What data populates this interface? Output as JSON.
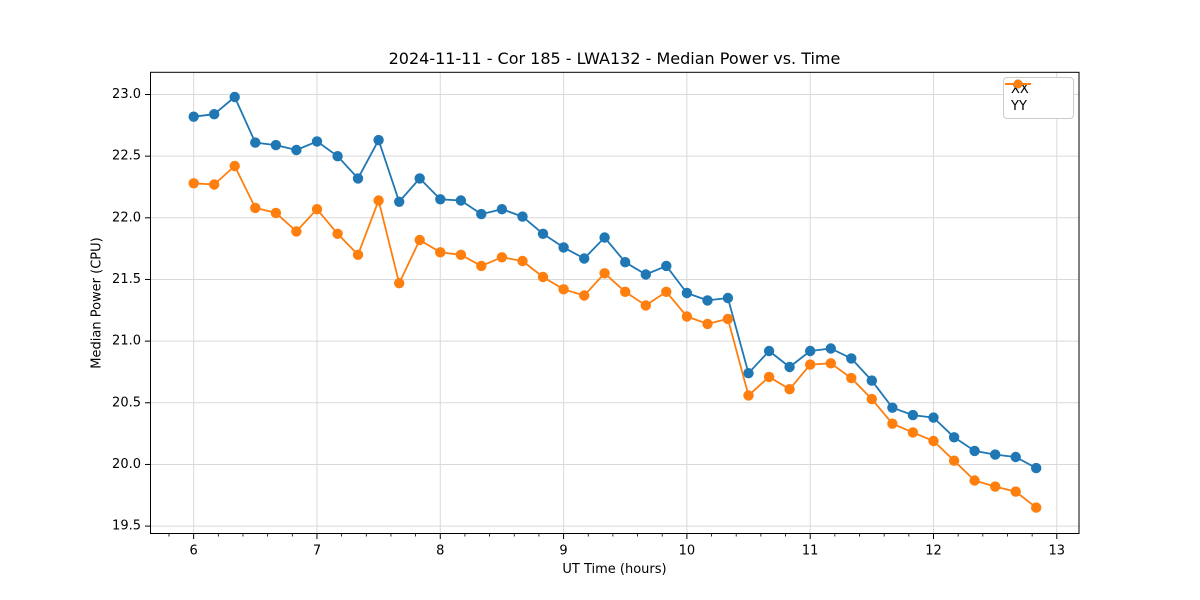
{
  "chart_data": {
    "type": "line",
    "title": "2024-11-11 - Cor 185 - LWA132 - Median Power vs. Time",
    "xlabel": "UT Time (hours)",
    "ylabel": "Median Power (CPU)",
    "xlim": [
      5.65,
      13.18
    ],
    "ylim": [
      19.44,
      23.18
    ],
    "x_ticks": [
      6,
      7,
      8,
      9,
      10,
      11,
      12,
      13
    ],
    "x_minor_tick_step": 0.2,
    "y_ticks": [
      19.5,
      20.0,
      20.5,
      21.0,
      21.5,
      22.0,
      22.5,
      23.0
    ],
    "grid": true,
    "grid_color": "#d9d9d9",
    "spine_color": "#000000",
    "legend_position": "upper right",
    "x": [
      6.0,
      6.167,
      6.333,
      6.5,
      6.667,
      6.833,
      7.0,
      7.167,
      7.333,
      7.5,
      7.667,
      7.833,
      8.0,
      8.167,
      8.333,
      8.5,
      8.667,
      8.833,
      9.0,
      9.167,
      9.333,
      9.5,
      9.667,
      9.833,
      10.0,
      10.167,
      10.333,
      10.5,
      10.667,
      10.833,
      11.0,
      11.167,
      11.333,
      11.5,
      11.667,
      11.833,
      12.0,
      12.167,
      12.333,
      12.5,
      12.667,
      12.833
    ],
    "series": [
      {
        "name": "XX",
        "color": "#1f77b4",
        "marker": "circle",
        "values": [
          22.82,
          22.84,
          22.98,
          22.61,
          22.59,
          22.55,
          22.62,
          22.5,
          22.32,
          22.63,
          22.13,
          22.32,
          22.15,
          22.14,
          22.03,
          22.07,
          22.01,
          21.87,
          21.76,
          21.67,
          21.84,
          21.64,
          21.54,
          21.61,
          21.39,
          21.33,
          21.35,
          20.74,
          20.92,
          20.79,
          20.92,
          20.94,
          20.86,
          20.68,
          20.46,
          20.4,
          20.38,
          20.22,
          20.11,
          20.08,
          20.06,
          19.97
        ]
      },
      {
        "name": "YY",
        "color": "#ff7f0e",
        "marker": "circle",
        "values": [
          22.28,
          22.27,
          22.42,
          22.08,
          22.04,
          21.89,
          22.07,
          21.87,
          21.7,
          22.14,
          21.47,
          21.82,
          21.72,
          21.7,
          21.61,
          21.68,
          21.65,
          21.52,
          21.42,
          21.37,
          21.55,
          21.4,
          21.29,
          21.4,
          21.2,
          21.14,
          21.18,
          20.56,
          20.71,
          20.61,
          20.81,
          20.82,
          20.7,
          20.53,
          20.33,
          20.26,
          20.19,
          20.03,
          19.87,
          19.82,
          19.78,
          19.65
        ]
      }
    ]
  }
}
